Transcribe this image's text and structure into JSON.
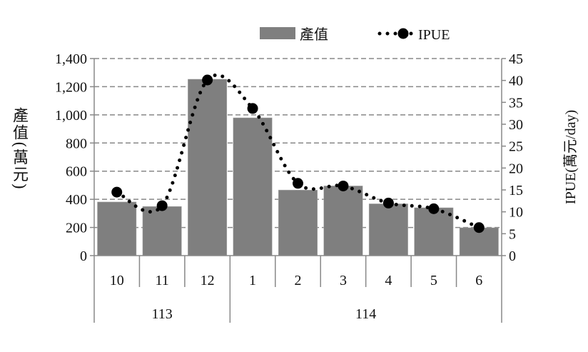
{
  "chart_data": {
    "type": "bar+line",
    "title": "",
    "categories": [
      "10",
      "11",
      "12",
      "1",
      "2",
      "3",
      "4",
      "5",
      "6"
    ],
    "category_groups": [
      {
        "label": "113",
        "span": 3
      },
      {
        "label": "114",
        "span": 6
      }
    ],
    "series": [
      {
        "name": "產值",
        "type": "bar",
        "axis": "left",
        "color": "#7f7f7f",
        "values": [
          381,
          349,
          1253,
          979,
          466,
          495,
          368,
          340,
          198
        ]
      },
      {
        "name": "IPUE",
        "type": "line",
        "axis": "right",
        "style": "dotted-smooth-with-markers",
        "color": "#000000",
        "values": [
          14.5,
          11.4,
          40.1,
          33.6,
          16.5,
          15.9,
          12.0,
          10.7,
          6.4
        ]
      }
    ],
    "ylabel": "產值(萬元)",
    "ylim": [
      0,
      1400
    ],
    "yticks": [
      "0",
      "200",
      "400",
      "600",
      "800",
      "1,000",
      "1,200",
      "1,400"
    ],
    "y2label": "IPUE(萬元/day)",
    "y2lim": [
      0,
      45
    ],
    "y2ticks": [
      "0",
      "5",
      "10",
      "15",
      "20",
      "25",
      "30",
      "35",
      "40",
      "45"
    ],
    "grid": "horizontal-dashed",
    "legend_position": "top"
  }
}
